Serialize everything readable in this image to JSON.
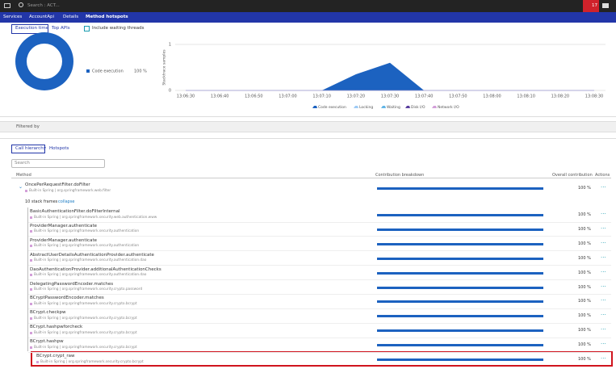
{
  "topbar": {
    "search": "Search : ACT...",
    "notifications": "17"
  },
  "breadcrumbs": [
    "Services",
    "AccountApi",
    "Details",
    "Method hotspots"
  ],
  "view_tabs": [
    "Execution time",
    "Top APIs"
  ],
  "checkbox": "Include waiting threads",
  "chart_data": [
    {
      "type": "pie",
      "categories": [
        "Code execution"
      ],
      "values": [
        100
      ],
      "value_labels": [
        "100 %"
      ],
      "colors": [
        "#1c62c0"
      ]
    },
    {
      "type": "area",
      "ylabel": "Stacktrace samples",
      "categories": [
        "13:06:30",
        "13:06:40",
        "13:06:50",
        "13:07:00",
        "13:07:10",
        "13:07:20",
        "13:07:30",
        "13:07:40",
        "13:07:50",
        "13:08:00",
        "13:08:10",
        "13:08:20",
        "13:08:30"
      ],
      "series": [
        {
          "name": "Code execution",
          "color": "#1c62c0",
          "values": [
            0,
            0,
            0,
            0,
            0,
            0.35,
            0.6,
            0,
            0,
            0,
            0,
            0,
            0
          ]
        },
        {
          "name": "Locking",
          "color": "#9ecbf5",
          "values": [
            0,
            0,
            0,
            0,
            0,
            0,
            0,
            0,
            0,
            0,
            0,
            0,
            0
          ]
        },
        {
          "name": "Waiting",
          "color": "#63b6e6",
          "values": [
            0,
            0,
            0,
            0,
            0,
            0,
            0,
            0,
            0,
            0,
            0,
            0,
            0
          ]
        },
        {
          "name": "Disk I/O",
          "color": "#5a3f9e",
          "values": [
            0,
            0,
            0,
            0,
            0,
            0,
            0,
            0,
            0,
            0,
            0,
            0,
            0
          ]
        },
        {
          "name": "Network I/O",
          "color": "#d39fd9",
          "values": [
            0,
            0,
            0,
            0,
            0,
            0,
            0,
            0,
            0,
            0,
            0,
            0,
            0
          ]
        }
      ],
      "ylim": [
        0,
        1
      ],
      "yticks": [
        0,
        1
      ]
    }
  ],
  "filter": "Filtered by",
  "hierarchy_tabs": [
    "Call hierarchy",
    "Hotspots"
  ],
  "search_placeholder": "Search",
  "stack_frames": {
    "count_label": "10 stack frames",
    "action": "collapse"
  },
  "table": {
    "columns": [
      "Method",
      "Contribution breakdown",
      "Overall contribution",
      "Actions"
    ],
    "rows": [
      {
        "method": "OncePerRequestFilter.doFilter",
        "source": "Built-in Spring | org.springframework.web.filter",
        "contribution": 100,
        "contribution_label": "100 %"
      },
      {
        "method": "BasicAuthenticationFilter.doFilterInternal",
        "source": "Built-in Spring | org.springframework.security.web.authentication.www",
        "contribution": 100,
        "contribution_label": "100 %"
      },
      {
        "method": "ProviderManager.authenticate",
        "source": "Built-in Spring | org.springframework.security.authentication",
        "contribution": 100,
        "contribution_label": "100 %"
      },
      {
        "method": "ProviderManager.authenticate",
        "source": "Built-in Spring | org.springframework.security.authentication",
        "contribution": 100,
        "contribution_label": "100 %"
      },
      {
        "method": "AbstractUserDetailsAuthenticationProvider.authenticate",
        "source": "Built-in Spring | org.springframework.security.authentication.dao",
        "contribution": 100,
        "contribution_label": "100 %"
      },
      {
        "method": "DaoAuthenticationProvider.additionalAuthenticationChecks",
        "source": "Built-in Spring | org.springframework.security.authentication.dao",
        "contribution": 100,
        "contribution_label": "100 %"
      },
      {
        "method": "DelegatingPasswordEncoder.matches",
        "source": "Built-in Spring | org.springframework.security.crypto.password",
        "contribution": 100,
        "contribution_label": "100 %"
      },
      {
        "method": "BCryptPasswordEncoder.matches",
        "source": "Built-in Spring | org.springframework.security.crypto.bcrypt",
        "contribution": 100,
        "contribution_label": "100 %"
      },
      {
        "method": "BCrypt.checkpw",
        "source": "Built-in Spring | org.springframework.security.crypto.bcrypt",
        "contribution": 100,
        "contribution_label": "100 %"
      },
      {
        "method": "BCrypt.hashpwforcheck",
        "source": "Built-in Spring | org.springframework.security.crypto.bcrypt",
        "contribution": 100,
        "contribution_label": "100 %"
      },
      {
        "method": "BCrypt.hashpw",
        "source": "Built-in Spring | org.springframework.security.crypto.bcrypt",
        "contribution": 100,
        "contribution_label": "100 %"
      },
      {
        "method": "BCrypt.crypt_raw",
        "source": "Built-in Spring | org.springframework.security.crypto.bcrypt",
        "contribution": 100,
        "contribution_label": "100 %"
      }
    ]
  }
}
